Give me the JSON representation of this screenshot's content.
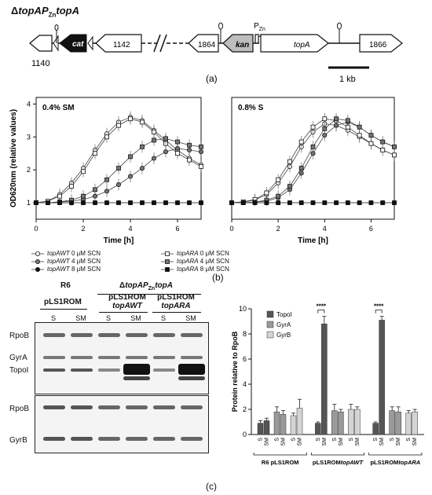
{
  "panel_a": {
    "title": "ΔtopAP_ZntopA",
    "labels": {
      "g1140": "1140",
      "cat": "cat",
      "g1142": "1142",
      "g1864": "1864",
      "kan": "kan",
      "pzn": "P_Zn",
      "topA": "topA",
      "g1866": "1866"
    },
    "scale_bar": "1 kb",
    "letter": "(a)"
  },
  "panel_b": {
    "letter": "(b)",
    "ylabel": "OD620nm (relative values)",
    "xlabel": "Time [h]",
    "legend": [
      {
        "strain": "topAWT",
        "conc": "0 μM SCN",
        "marker": "open-circle"
      },
      {
        "strain": "topAWT",
        "conc": "4 μM SCN",
        "marker": "grey-circle"
      },
      {
        "strain": "topAWT",
        "conc": "8 μM SCN",
        "marker": "black-circle"
      },
      {
        "strain": "topARA",
        "conc": "0 μM SCN",
        "marker": "open-square"
      },
      {
        "strain": "topARA",
        "conc": "4 μM SCN",
        "marker": "grey-square"
      },
      {
        "strain": "topARA",
        "conc": "8 μM SCN",
        "marker": "black-square"
      }
    ]
  },
  "panel_c": {
    "letter": "(c)",
    "header": {
      "r6": "R6",
      "mutant": "ΔtopAP_ZntopA",
      "p1": "pLS1ROM",
      "p2a": "pLS1ROM",
      "p2b": "topAWT",
      "p3a": "pLS1ROM",
      "p3b": "topARA"
    },
    "lanes": [
      "S",
      "SM",
      "S",
      "SM",
      "S",
      "SM"
    ],
    "blot_labels": {
      "rpob1": "RpoB",
      "gyra": "GyrA",
      "topoi": "TopoI",
      "rpob2": "RpoB",
      "gyrb": "GyrB"
    }
  },
  "chart_data": [
    {
      "type": "line",
      "title": "0.4% SM",
      "xlabel": "Time [h]",
      "ylabel": "OD620nm (relative values)",
      "xlim": [
        0,
        7
      ],
      "ylim": [
        0.5,
        4.2
      ],
      "xticks": [
        0,
        2,
        4,
        6
      ],
      "yticks": [
        1,
        2,
        3,
        4
      ],
      "series": [
        {
          "name": "topAWT 0 μM SCN",
          "marker": "open-circle",
          "x": [
            0,
            0.5,
            1,
            1.5,
            2,
            2.5,
            3,
            3.5,
            4,
            4.5,
            5,
            5.5,
            6,
            6.5,
            7
          ],
          "y": [
            1,
            1.05,
            1.25,
            1.6,
            2.05,
            2.6,
            3.1,
            3.45,
            3.6,
            3.5,
            3.2,
            2.9,
            2.6,
            2.35,
            2.15
          ]
        },
        {
          "name": "topAWT 4 μM SCN",
          "marker": "grey-circle",
          "x": [
            0,
            0.5,
            1,
            1.5,
            2,
            2.5,
            3,
            3.5,
            4,
            4.5,
            5,
            5.5,
            6,
            6.5,
            7
          ],
          "y": [
            1,
            1,
            1.02,
            1.05,
            1.1,
            1.2,
            1.35,
            1.55,
            1.8,
            2.05,
            2.35,
            2.55,
            2.65,
            2.6,
            2.55
          ]
        },
        {
          "name": "topAWT 8 μM SCN",
          "marker": "black-circle",
          "x": [
            0,
            0.5,
            1,
            1.5,
            2,
            2.5,
            3,
            3.5,
            4,
            4.5,
            5,
            5.5,
            6,
            6.5,
            7
          ],
          "y": [
            1,
            1,
            1,
            1,
            1,
            1,
            1,
            1,
            1,
            1,
            1,
            1,
            1,
            1,
            1
          ]
        },
        {
          "name": "topARA 0 μM SCN",
          "marker": "open-square",
          "x": [
            0,
            0.5,
            1,
            1.5,
            2,
            2.5,
            3,
            3.5,
            4,
            4.5,
            5,
            5.5,
            6,
            6.5,
            7
          ],
          "y": [
            1,
            1.05,
            1.2,
            1.5,
            1.95,
            2.5,
            3.0,
            3.35,
            3.55,
            3.45,
            3.15,
            2.8,
            2.5,
            2.3,
            2.1
          ]
        },
        {
          "name": "topARA 4 μM SCN",
          "marker": "grey-square",
          "x": [
            0,
            0.5,
            1,
            1.5,
            2,
            2.5,
            3,
            3.5,
            4,
            4.5,
            5,
            5.5,
            6,
            6.5,
            7
          ],
          "y": [
            1,
            1,
            1.03,
            1.08,
            1.2,
            1.4,
            1.7,
            2.05,
            2.4,
            2.7,
            2.9,
            2.95,
            2.85,
            2.75,
            2.7
          ]
        },
        {
          "name": "topARA 8 μM SCN",
          "marker": "black-square",
          "x": [
            0,
            0.5,
            1,
            1.5,
            2,
            2.5,
            3,
            3.5,
            4,
            4.5,
            5,
            5.5,
            6,
            6.5,
            7
          ],
          "y": [
            1,
            1,
            1,
            1,
            1,
            1,
            1,
            1,
            1,
            1,
            1,
            1,
            1,
            1,
            1
          ]
        }
      ]
    },
    {
      "type": "line",
      "title": "0.8% S",
      "xlabel": "Time [h]",
      "xlim": [
        0,
        7
      ],
      "ylim": [
        0.5,
        4.2
      ],
      "xticks": [
        0,
        2,
        4,
        6
      ],
      "series": [
        {
          "name": "topAWT 0 μM SCN",
          "marker": "open-circle",
          "x": [
            0,
            0.5,
            1,
            1.5,
            2,
            2.5,
            3,
            3.5,
            4,
            4.5,
            5,
            5.5,
            6,
            6.5,
            7
          ],
          "y": [
            1,
            1.02,
            1.08,
            1.25,
            1.6,
            2.1,
            2.7,
            3.15,
            3.4,
            3.35,
            3.2,
            3.0,
            2.8,
            2.6,
            2.45
          ]
        },
        {
          "name": "topAWT 4 μM SCN",
          "marker": "grey-circle",
          "x": [
            0,
            0.5,
            1,
            1.5,
            2,
            2.5,
            3,
            3.5,
            4,
            4.5,
            5,
            5.5,
            6,
            6.5,
            7
          ],
          "y": [
            1,
            1,
            1.02,
            1.05,
            1.15,
            1.4,
            1.9,
            2.5,
            3.05,
            3.35,
            3.45,
            3.3,
            3.05,
            2.85,
            2.7
          ]
        },
        {
          "name": "topAWT 8 μM SCN",
          "marker": "black-circle",
          "x": [
            0,
            0.5,
            1,
            1.5,
            2,
            2.5,
            3,
            3.5,
            4,
            4.5,
            5,
            5.5,
            6,
            6.5,
            7
          ],
          "y": [
            1,
            1,
            1,
            1,
            1,
            1,
            1,
            1,
            1,
            1,
            1,
            1,
            1,
            1,
            1
          ]
        },
        {
          "name": "topARA 0 μM SCN",
          "marker": "open-square",
          "x": [
            0,
            0.5,
            1,
            1.5,
            2,
            2.5,
            3,
            3.5,
            4,
            4.5,
            5,
            5.5,
            6,
            6.5,
            7
          ],
          "y": [
            1,
            1.03,
            1.1,
            1.3,
            1.7,
            2.25,
            2.85,
            3.3,
            3.55,
            3.5,
            3.3,
            3.05,
            2.8,
            2.6,
            2.45
          ]
        },
        {
          "name": "topARA 4 μM SCN",
          "marker": "grey-square",
          "x": [
            0,
            0.5,
            1,
            1.5,
            2,
            2.5,
            3,
            3.5,
            4,
            4.5,
            5,
            5.5,
            6,
            6.5,
            7
          ],
          "y": [
            1,
            1,
            1.02,
            1.08,
            1.2,
            1.5,
            2.05,
            2.7,
            3.25,
            3.55,
            3.5,
            3.3,
            3.05,
            2.85,
            2.7
          ]
        },
        {
          "name": "topARA 8 μM SCN",
          "marker": "black-square",
          "x": [
            0,
            0.5,
            1,
            1.5,
            2,
            2.5,
            3,
            3.5,
            4,
            4.5,
            5,
            5.5,
            6,
            6.5,
            7
          ],
          "y": [
            1,
            1,
            1,
            1,
            1,
            1,
            1,
            1,
            1,
            1,
            1,
            1,
            1,
            1,
            1
          ]
        }
      ]
    },
    {
      "type": "bar",
      "ylabel": "Protein relative to RpoB",
      "ylim": [
        0,
        10
      ],
      "yticks": [
        0,
        2,
        4,
        6,
        8,
        10
      ],
      "groups": [
        "R6 pLS1ROM",
        "pLS1ROMtopAWT",
        "pLS1ROMtopARA"
      ],
      "conditions": [
        "S",
        "SM"
      ],
      "significance": "****",
      "series": [
        {
          "name": "TopoI",
          "color": "#555555",
          "values": [
            [
              0.9,
              1.1
            ],
            [
              0.9,
              8.8
            ],
            [
              0.9,
              9.1
            ]
          ],
          "errors": [
            [
              0.2,
              0.2
            ],
            [
              0.1,
              0.6
            ],
            [
              0.1,
              0.3
            ]
          ]
        },
        {
          "name": "GyrA",
          "color": "#9a9a9a",
          "values": [
            [
              1.8,
              1.6
            ],
            [
              1.9,
              1.8
            ],
            [
              1.9,
              1.8
            ]
          ],
          "errors": [
            [
              0.4,
              0.3
            ],
            [
              0.5,
              0.2
            ],
            [
              0.3,
              0.4
            ]
          ]
        },
        {
          "name": "GyrB",
          "color": "#d4d4d4",
          "values": [
            [
              1.5,
              2.1
            ],
            [
              2.0,
              2.0
            ],
            [
              1.7,
              1.8
            ]
          ],
          "errors": [
            [
              0.2,
              0.7
            ],
            [
              0.4,
              0.2
            ],
            [
              0.2,
              0.2
            ]
          ]
        }
      ]
    }
  ]
}
